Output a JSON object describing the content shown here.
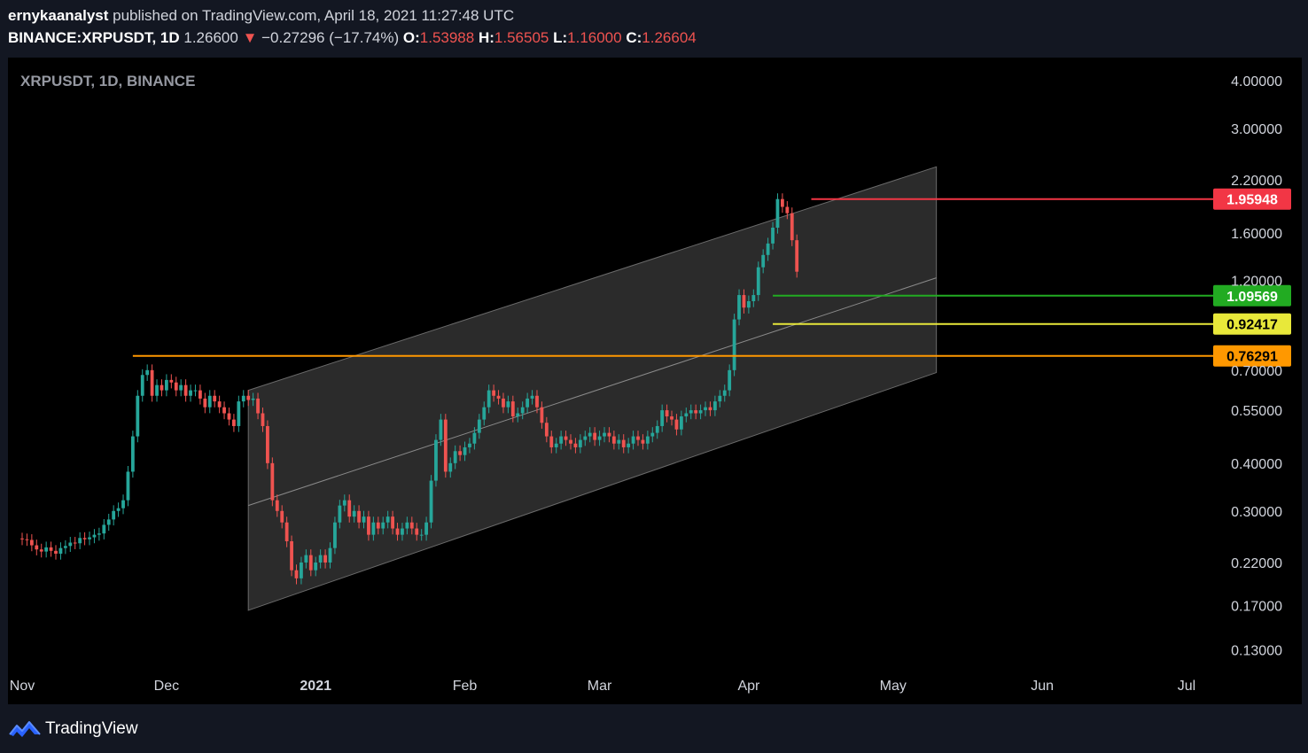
{
  "header": {
    "author": "ernykaanalyst",
    "published_text": " published on TradingView.com, April 18, 2021 11:27:48 UTC",
    "symbol_line": "BINANCE:XRPUSDT, 1D",
    "last_price": "1.26600",
    "change_arrow": "▼",
    "change": "−0.27296 (−17.74%)",
    "open_label": "O:",
    "open": "1.53988",
    "high_label": "H:",
    "high": "1.56505",
    "low_label": "L:",
    "low": "1.16000",
    "close_label": "C:",
    "close": "1.26604"
  },
  "footer": {
    "brand": "TradingView"
  },
  "colors": {
    "background": "#000000",
    "page": "#131722",
    "up_candle": "#26a69a",
    "down_candle": "#ef5350",
    "channel_fill": "#3a3a3a",
    "resistance_top": "#f23645",
    "support_green": "#22ab22",
    "level_yellow": "#e8e83a",
    "level_orange": "#ff9800"
  },
  "chart_data": {
    "type": "candlestick",
    "watermark": "XRPUSDT, 1D, BINANCE",
    "scale": "log",
    "ylim": [
      0.11,
      4.4
    ],
    "y_ticks": [
      "4.00000",
      "3.00000",
      "2.20000",
      "1.60000",
      "1.20000",
      "0.70000",
      "0.55000",
      "0.40000",
      "0.30000",
      "0.22000",
      "0.17000",
      "0.13000"
    ],
    "x_ticks": [
      "Nov",
      "Dec",
      "2021",
      "Feb",
      "Mar",
      "Apr",
      "May",
      "Jun",
      "Jul"
    ],
    "x_range": [
      "2020-11-01",
      "2021-07-01"
    ],
    "series_start": "2020-11-01",
    "closes": [
      0.253,
      0.252,
      0.244,
      0.238,
      0.235,
      0.241,
      0.236,
      0.232,
      0.24,
      0.243,
      0.248,
      0.247,
      0.255,
      0.253,
      0.256,
      0.26,
      0.262,
      0.276,
      0.285,
      0.3,
      0.305,
      0.32,
      0.38,
      0.47,
      0.6,
      0.68,
      0.7,
      0.6,
      0.64,
      0.62,
      0.66,
      0.65,
      0.62,
      0.64,
      0.6,
      0.62,
      0.62,
      0.59,
      0.56,
      0.6,
      0.58,
      0.56,
      0.54,
      0.52,
      0.5,
      0.58,
      0.6,
      0.585,
      0.59,
      0.54,
      0.5,
      0.4,
      0.32,
      0.3,
      0.28,
      0.25,
      0.21,
      0.2,
      0.22,
      0.23,
      0.21,
      0.22,
      0.23,
      0.22,
      0.24,
      0.28,
      0.31,
      0.32,
      0.29,
      0.3,
      0.28,
      0.29,
      0.26,
      0.28,
      0.27,
      0.28,
      0.29,
      0.27,
      0.26,
      0.27,
      0.28,
      0.27,
      0.26,
      0.26,
      0.28,
      0.36,
      0.46,
      0.52,
      0.38,
      0.4,
      0.43,
      0.42,
      0.44,
      0.45,
      0.48,
      0.52,
      0.56,
      0.62,
      0.6,
      0.59,
      0.56,
      0.58,
      0.53,
      0.54,
      0.56,
      0.59,
      0.6,
      0.56,
      0.51,
      0.47,
      0.44,
      0.45,
      0.47,
      0.46,
      0.45,
      0.44,
      0.46,
      0.47,
      0.48,
      0.46,
      0.47,
      0.48,
      0.47,
      0.45,
      0.46,
      0.44,
      0.45,
      0.47,
      0.46,
      0.45,
      0.47,
      0.48,
      0.5,
      0.55,
      0.53,
      0.52,
      0.49,
      0.53,
      0.54,
      0.55,
      0.54,
      0.55,
      0.56,
      0.55,
      0.58,
      0.6,
      0.62,
      0.7,
      0.95,
      1.1,
      1.02,
      1.06,
      1.1,
      1.3,
      1.4,
      1.5,
      1.65,
      1.96,
      1.87,
      1.8,
      1.53,
      1.266
    ],
    "horizontal_levels": [
      {
        "value": 1.95948,
        "label": "1.95948",
        "color": "#f23645",
        "from": "2021-04-14"
      },
      {
        "value": 1.09569,
        "label": "1.09569",
        "color": "#22ab22",
        "from": "2021-04-06"
      },
      {
        "value": 0.92417,
        "label": "0.92417",
        "color": "#e8e83a",
        "from": "2021-04-06"
      },
      {
        "value": 0.76291,
        "label": "0.76291",
        "color": "#ff9800",
        "from": "2020-11-24"
      }
    ],
    "channel": {
      "start_date": "2020-12-18",
      "end_date": "2021-05-10",
      "upper": [
        0.62,
        2.38
      ],
      "middle": [
        0.31,
        1.22
      ],
      "lower": [
        0.165,
        0.69
      ]
    }
  }
}
